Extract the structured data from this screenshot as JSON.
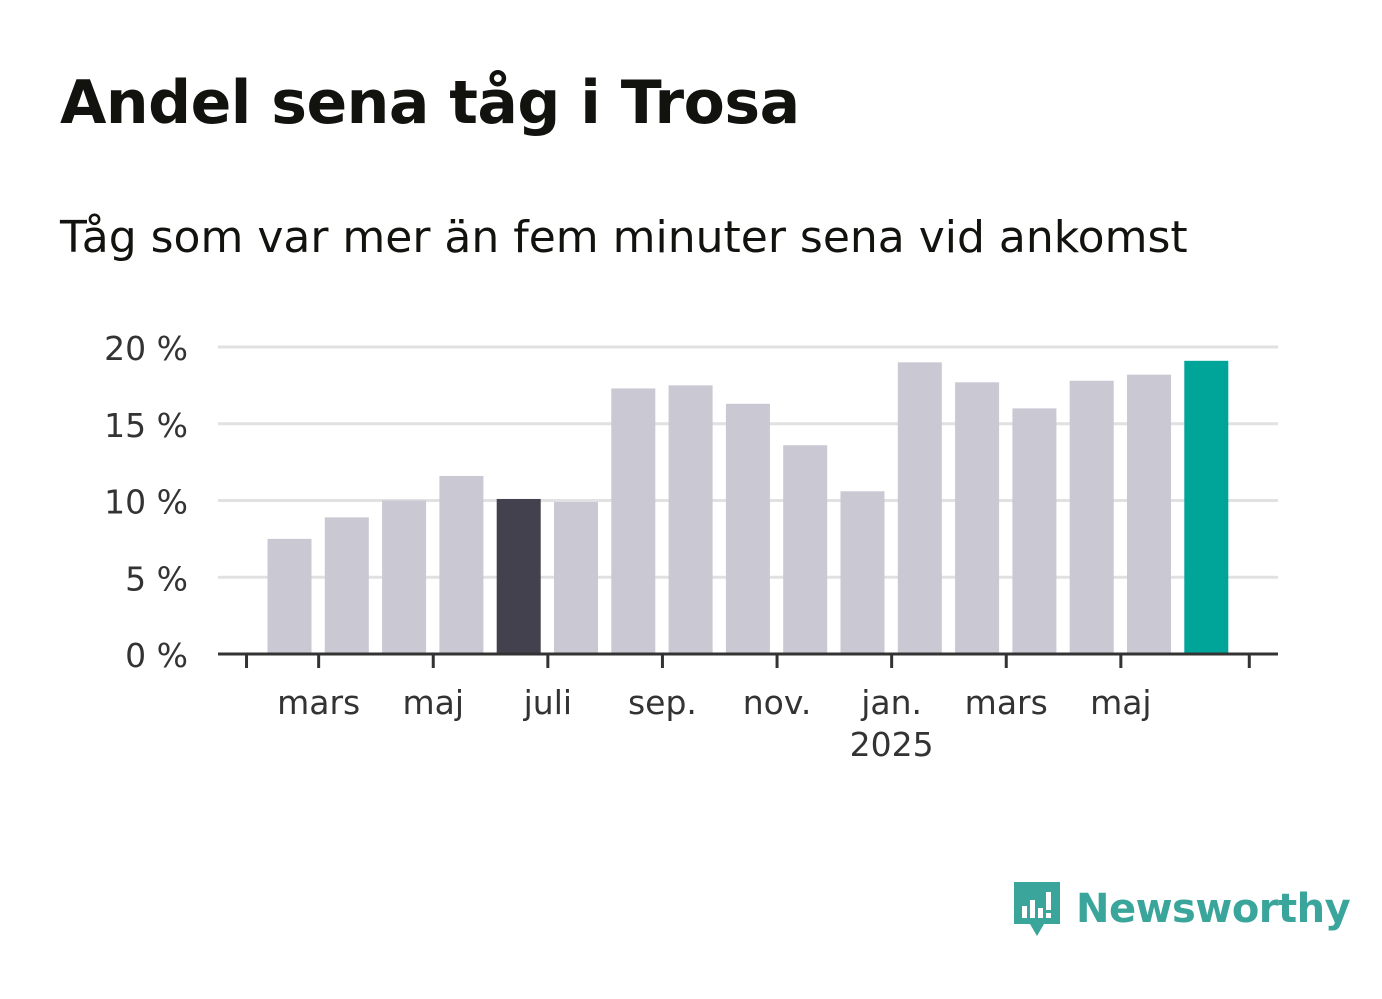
{
  "title": "Andel sena tåg i Trosa",
  "subtitle": "Tåg som var mer än fem minuter sena vid ankomst",
  "brand": {
    "name": "Newsworthy",
    "icon": "newsworthy-logo-icon",
    "color": "#3aa59a"
  },
  "colors": {
    "bar": "#c9c8d3",
    "highlight_dark": "#42414d",
    "highlight_current": "#00a59a",
    "grid": "#e1e1e1",
    "axis": "#333333",
    "text": "#333333"
  },
  "chart_data": {
    "type": "bar",
    "title": "Andel sena tåg i Trosa",
    "subtitle": "Tåg som var mer än fem minuter sena vid ankomst",
    "xlabel": "",
    "ylabel": "",
    "ylim": [
      0,
      20
    ],
    "yticks": [
      0,
      5,
      10,
      15,
      20
    ],
    "ytick_labels": [
      "0 %",
      "5 %",
      "10 %",
      "15 %",
      "20 %"
    ],
    "grid": true,
    "legend": "none",
    "unit": "%",
    "xtick_labels": [
      {
        "label": "mars",
        "sub": "",
        "index": 1
      },
      {
        "label": "maj",
        "sub": "",
        "index": 3
      },
      {
        "label": "juli",
        "sub": "",
        "index": 5
      },
      {
        "label": "sep.",
        "sub": "",
        "index": 7
      },
      {
        "label": "nov.",
        "sub": "",
        "index": 9
      },
      {
        "label": "jan.",
        "sub": "2025",
        "index": 11
      },
      {
        "label": "mars",
        "sub": "",
        "index": 13
      },
      {
        "label": "maj",
        "sub": "",
        "index": 15
      }
    ],
    "categories": [
      "2024-02",
      "2024-03",
      "2024-04",
      "2024-05",
      "2024-06",
      "2024-07",
      "2024-08",
      "2024-09",
      "2024-10",
      "2024-11",
      "2024-12",
      "2025-01",
      "2025-02",
      "2025-03",
      "2025-04",
      "2025-05",
      "2025-06"
    ],
    "values": [
      7.5,
      8.9,
      10.0,
      11.6,
      10.1,
      9.9,
      17.3,
      17.5,
      16.3,
      13.6,
      10.6,
      19.0,
      17.7,
      16.0,
      17.8,
      18.2,
      19.1
    ],
    "highlight": {
      "2024-06": "dark",
      "2025-06": "current"
    }
  }
}
